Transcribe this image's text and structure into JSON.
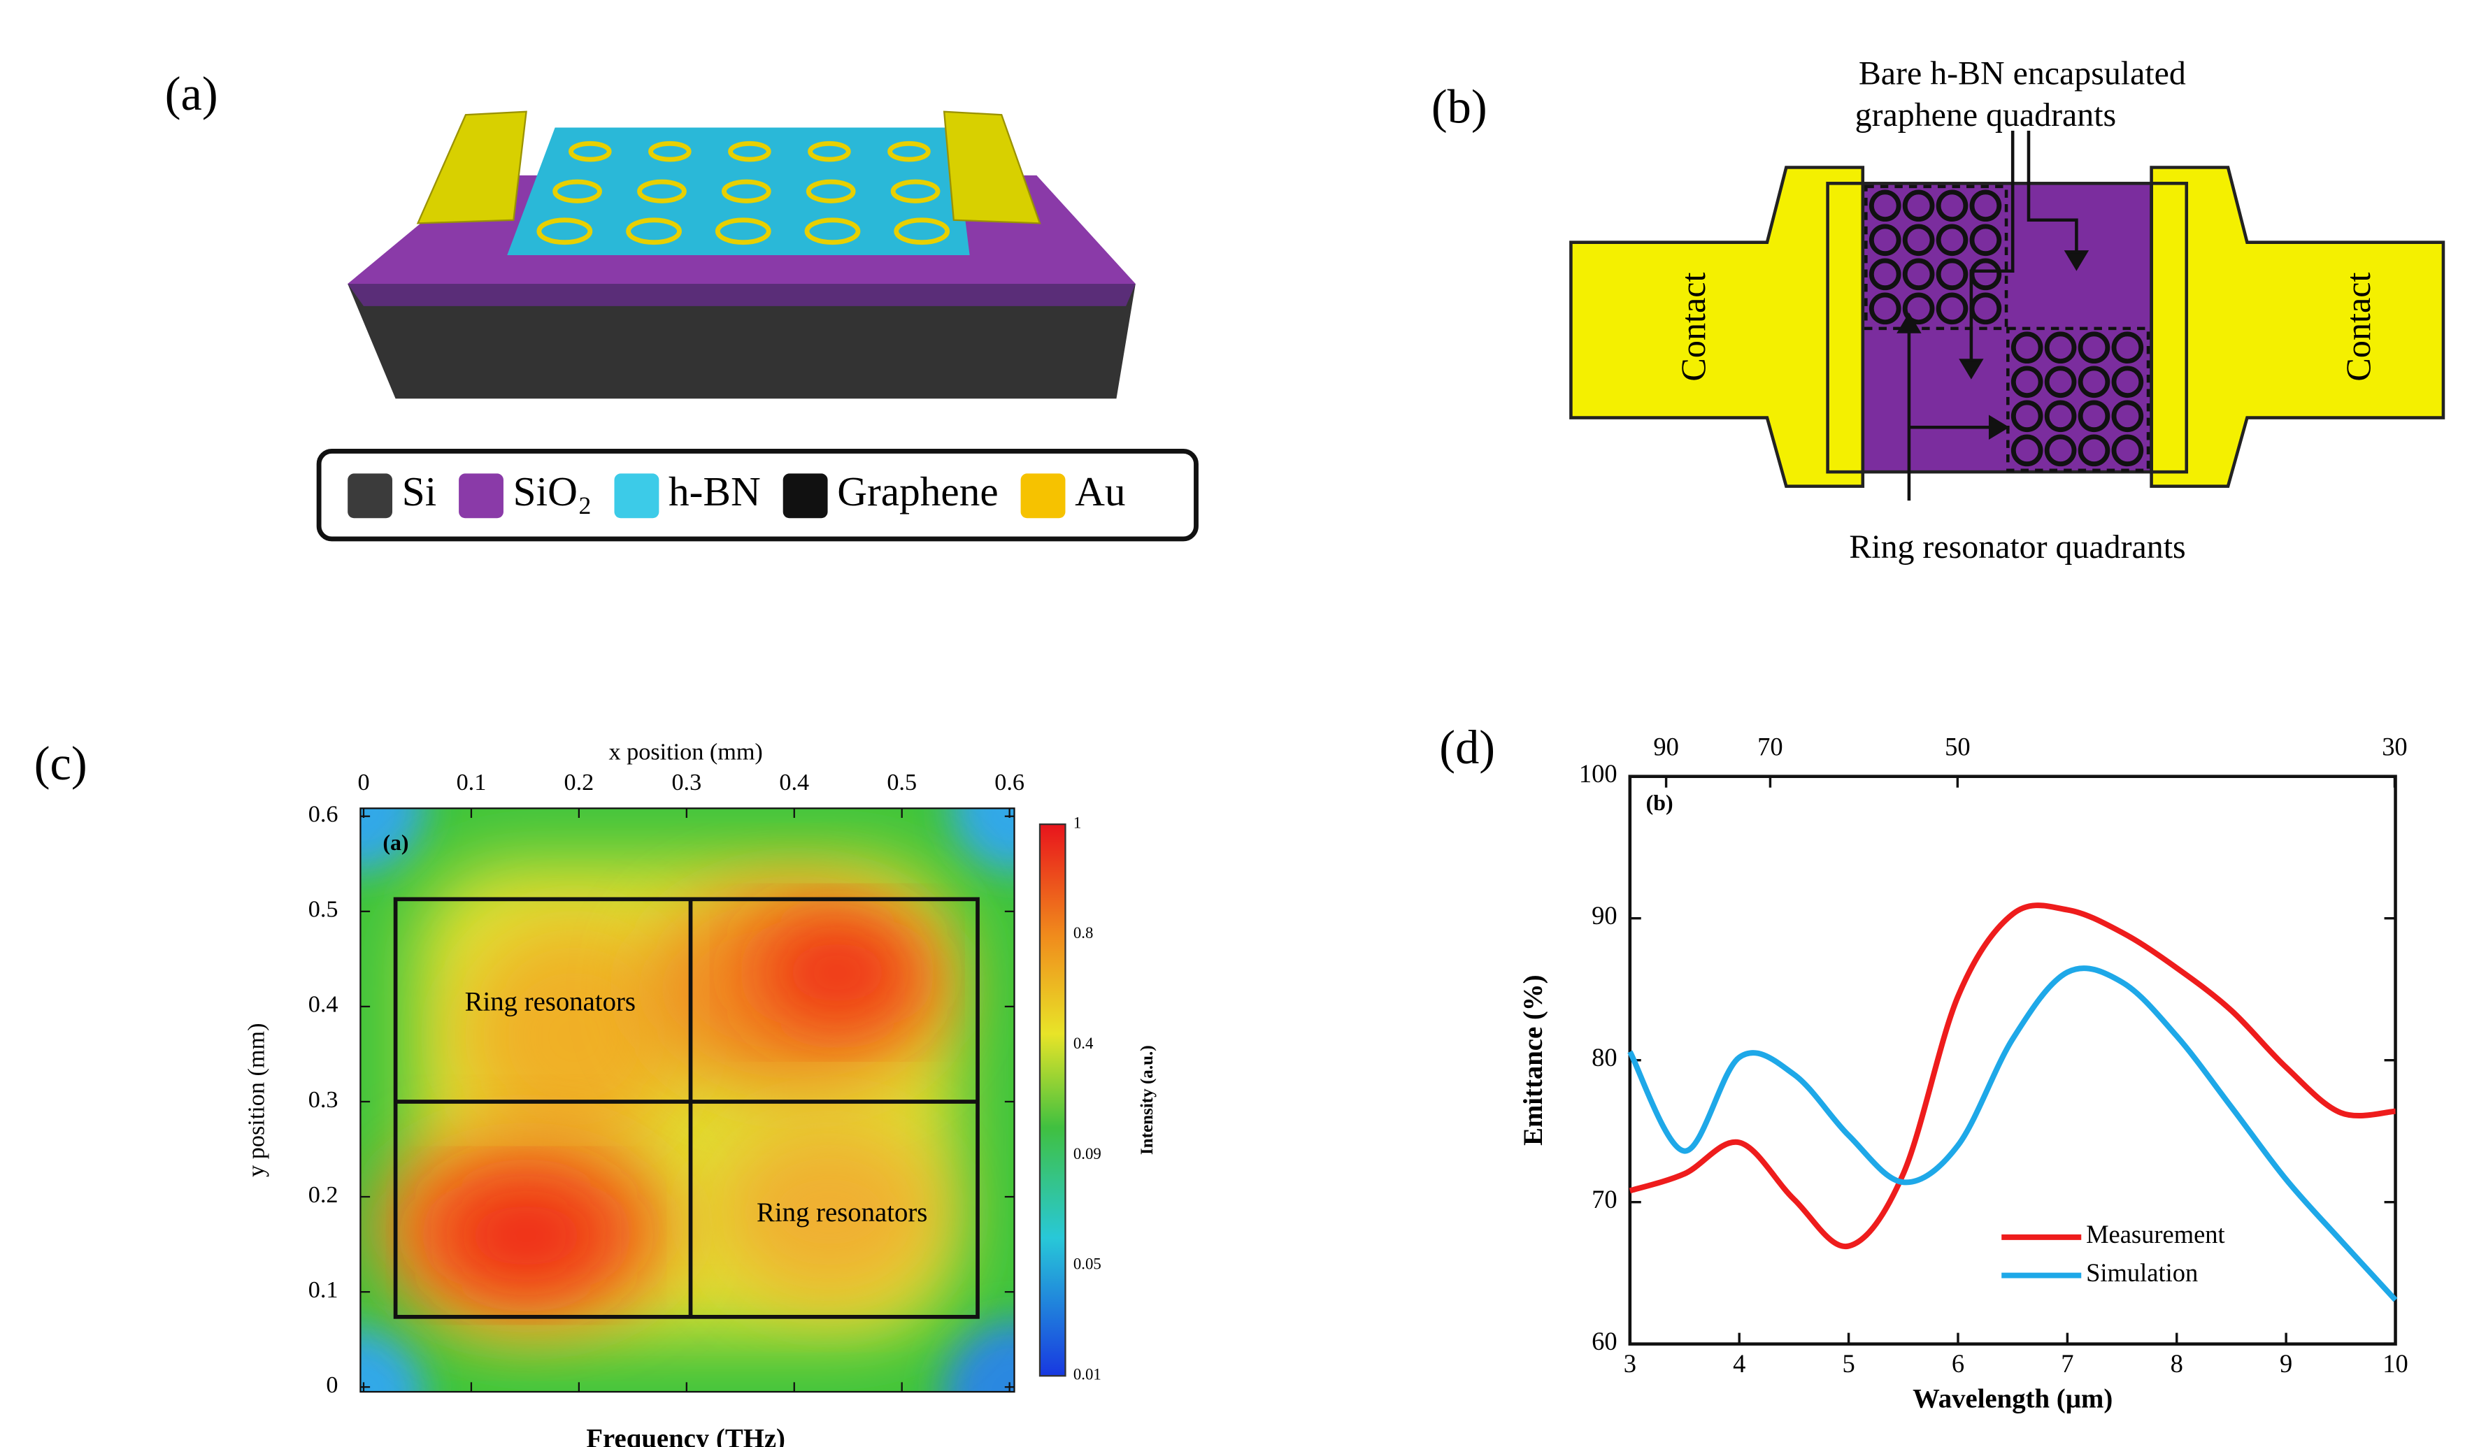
{
  "panel_a": {
    "label": "(a)",
    "legend": [
      {
        "name": "Si",
        "color": "#3b3b3b"
      },
      {
        "name": "SiO₂",
        "color": "#8a3aa8"
      },
      {
        "name": "h-BN",
        "color": "#3ccbe8"
      },
      {
        "name": "Graphene",
        "color": "#111111"
      },
      {
        "name": "Au",
        "color": "#f6c200"
      }
    ]
  },
  "panel_b": {
    "label": "(b)",
    "annotation_top": [
      "Bare h-BN encapsulated",
      "graphene quadrants"
    ],
    "annotation_bottom": "Ring resonator quadrants",
    "contact_left": "Contact",
    "contact_right": "Contact"
  },
  "panel_c": {
    "label": "(c)",
    "inset_label": "(a)",
    "xlabel_top": "x position (mm)",
    "ylabel": "y position (mm)",
    "xlabel_bottom": "Frequency (THz)",
    "xlim": [
      0,
      0.6
    ],
    "xticks": [
      0,
      0.1,
      0.2,
      0.3,
      0.4,
      0.5,
      0.6
    ],
    "ylim": [
      0,
      0.6
    ],
    "yticks": [
      0,
      0.1,
      0.2,
      0.3,
      0.4,
      0.5,
      0.6
    ],
    "colorbar_ticks": [
      "1",
      "0.8",
      "0.4",
      "0.09",
      "0.05",
      "0.01"
    ],
    "colorbar_label": "Intensity (a.u.)",
    "annotations": [
      "Ring resonators",
      "Ring resonators"
    ]
  },
  "chart_data": {
    "type": "line",
    "label": "(d)",
    "inset_label": "(b)",
    "xlabel": "Wavelength (µm)",
    "ylabel": "Emittance (%)",
    "x": [
      3,
      3.5,
      4,
      4.5,
      5,
      5.5,
      6,
      6.5,
      7,
      7.5,
      8,
      8.5,
      9,
      9.5,
      10
    ],
    "series": [
      {
        "name": "Measurement",
        "color": "#ee1c1c",
        "values": [
          70.8,
          72.0,
          74.2,
          70.2,
          66.9,
          72.0,
          84.5,
          90.3,
          90.6,
          89.0,
          86.5,
          83.5,
          79.5,
          76.3,
          76.4
        ]
      },
      {
        "name": "Simulation",
        "color": "#1ea8e8",
        "values": [
          80.6,
          73.6,
          80.2,
          79.0,
          74.7,
          71.4,
          74.0,
          81.5,
          86.2,
          85.5,
          81.7,
          76.7,
          71.6,
          67.3,
          63.1
        ]
      }
    ],
    "xlim": [
      3,
      10
    ],
    "xticks": [
      3,
      4,
      5,
      6,
      7,
      8,
      9,
      10
    ],
    "ylim": [
      60,
      100
    ],
    "yticks": [
      60,
      70,
      80,
      90,
      100
    ],
    "x2ticks": [
      90,
      70,
      50,
      30
    ],
    "legend": "lower right"
  }
}
